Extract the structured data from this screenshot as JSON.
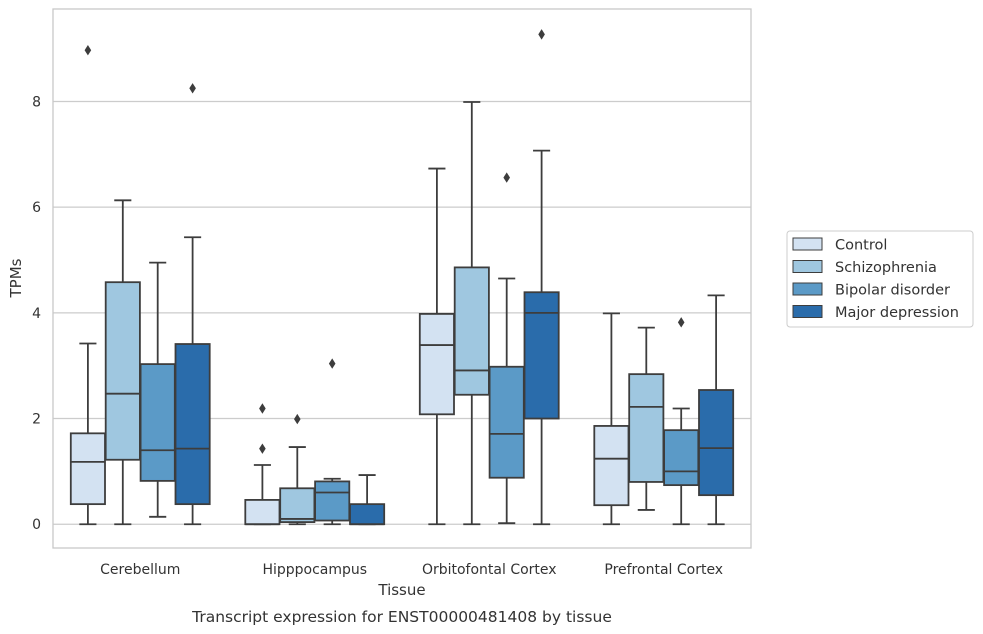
{
  "chart_data": {
    "type": "box",
    "caption": "Transcript expression for ENST00000481408 by tissue",
    "xlabel": "Tissue",
    "ylabel": "TPMs",
    "ylim": [
      -0.45,
      9.75
    ],
    "yticks": [
      0,
      2,
      4,
      6,
      8
    ],
    "grid": "horizontal",
    "legend_position": "right",
    "categories": [
      "Cerebellum",
      "Hipppocampus",
      "Orbitofontal Cortex",
      "Prefrontal Cortex"
    ],
    "series": [
      {
        "name": "Control",
        "color": "#d3e2f2",
        "boxes": [
          {
            "whislo": 0,
            "q1": 0.38,
            "med": 1.18,
            "q3": 1.72,
            "whishi": 3.42,
            "fliers": [
              8.97
            ]
          },
          {
            "whislo": 0,
            "q1": 0,
            "med": 0,
            "q3": 0.46,
            "whishi": 1.12,
            "fliers": [
              1.43,
              2.19
            ]
          },
          {
            "whislo": 0,
            "q1": 2.08,
            "med": 3.39,
            "q3": 3.98,
            "whishi": 6.73,
            "fliers": []
          },
          {
            "whislo": 0,
            "q1": 0.36,
            "med": 1.24,
            "q3": 1.86,
            "whishi": 3.99,
            "fliers": []
          }
        ]
      },
      {
        "name": "Schizophrenia",
        "color": "#9fc7e0",
        "boxes": [
          {
            "whislo": 0,
            "q1": 1.22,
            "med": 2.47,
            "q3": 4.58,
            "whishi": 6.13,
            "fliers": []
          },
          {
            "whislo": 0,
            "q1": 0.04,
            "med": 0.1,
            "q3": 0.68,
            "whishi": 1.46,
            "fliers": [
              1.99
            ]
          },
          {
            "whislo": 0,
            "q1": 2.45,
            "med": 2.91,
            "q3": 4.86,
            "whishi": 7.99,
            "fliers": []
          },
          {
            "whislo": 0.27,
            "q1": 0.8,
            "med": 2.22,
            "q3": 2.84,
            "whishi": 3.72,
            "fliers": []
          }
        ]
      },
      {
        "name": "Bipolar disorder",
        "color": "#5b9ac7",
        "boxes": [
          {
            "whislo": 0.14,
            "q1": 0.82,
            "med": 1.4,
            "q3": 3.03,
            "whishi": 4.95,
            "fliers": []
          },
          {
            "whislo": 0,
            "q1": 0.07,
            "med": 0.6,
            "q3": 0.81,
            "whishi": 0.86,
            "fliers": [
              3.04
            ]
          },
          {
            "whislo": 0.02,
            "q1": 0.88,
            "med": 1.71,
            "q3": 2.98,
            "whishi": 4.65,
            "fliers": [
              6.56
            ]
          },
          {
            "whislo": 0,
            "q1": 0.74,
            "med": 1.0,
            "q3": 1.78,
            "whishi": 2.19,
            "fliers": [
              3.82
            ]
          }
        ]
      },
      {
        "name": "Major depression",
        "color": "#2a6cab",
        "boxes": [
          {
            "whislo": 0,
            "q1": 0.38,
            "med": 1.43,
            "q3": 3.41,
            "whishi": 5.43,
            "fliers": [
              8.25
            ]
          },
          {
            "whislo": 0,
            "q1": 0,
            "med": 0,
            "q3": 0.38,
            "whishi": 0.93,
            "fliers": []
          },
          {
            "whislo": 0,
            "q1": 2.0,
            "med": 4.0,
            "q3": 4.39,
            "whishi": 7.07,
            "fliers": [
              9.27
            ]
          },
          {
            "whislo": 0,
            "q1": 0.55,
            "med": 1.44,
            "q3": 2.54,
            "whishi": 4.33,
            "fliers": []
          }
        ]
      }
    ]
  },
  "colors": {
    "grid": "#cccccc",
    "frame": "#c8c8c8",
    "line": "#3d3d3d",
    "text": "#333333"
  }
}
